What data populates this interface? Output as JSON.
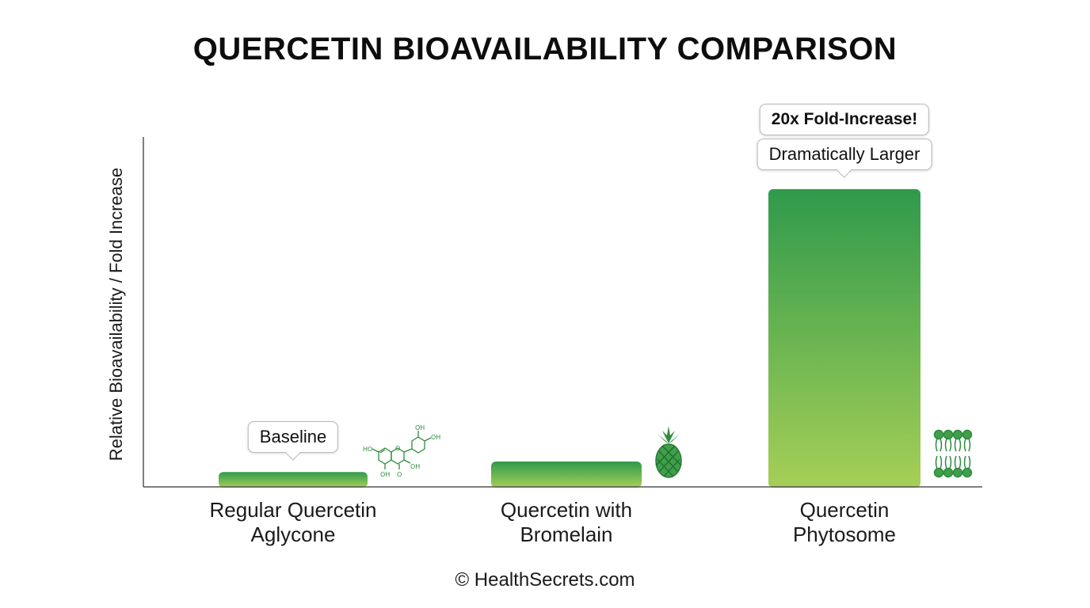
{
  "title": "QUERCETIN BIOAVAILABILITY COMPARISON",
  "footer": "© HealthSecrets.com",
  "colors": {
    "bar_top": "#2f9a4c",
    "bar_bottom": "#a6cf57",
    "icon": "#2e8b3e",
    "axis": "#555555"
  },
  "chart_data": {
    "type": "bar",
    "categories": [
      "Regular Quercetin\nAglycone",
      "Quercetin with\nBromelain",
      "Quercetin\nPhytosome"
    ],
    "values": [
      1,
      1.7,
      20
    ],
    "ylabel": "Relative Bioavailability / Fold Increase",
    "ylim": [
      0,
      23.5
    ],
    "grid": false,
    "annotations": [
      "Baseline",
      "",
      "Dramatically Larger"
    ],
    "highlight": "20x Fold-Increase!",
    "icons": [
      "quercetin-molecule-icon",
      "pineapple-icon",
      "phospholipid-bilayer-icon"
    ]
  }
}
